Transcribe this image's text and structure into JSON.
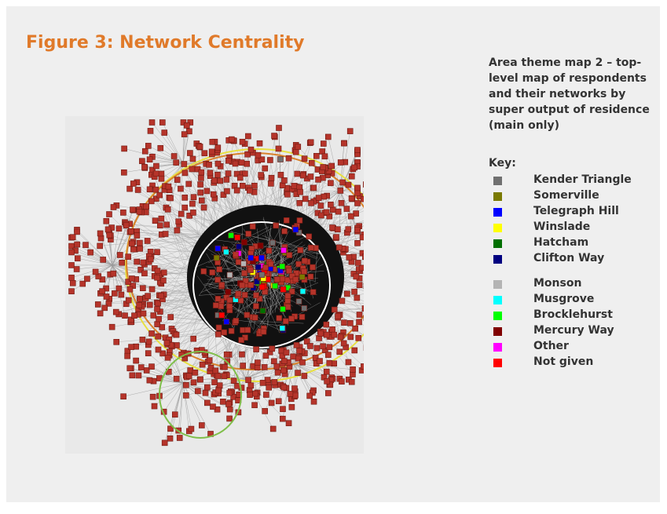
{
  "header": {
    "title": "Figure 3: Network Centrality"
  },
  "description": "Area theme map 2 – top-level map of respondents and their networks by super output of residence (main only)",
  "key": {
    "label": "Key:",
    "groups": [
      [
        {
          "label": "Kender Triangle",
          "color": "#707070"
        },
        {
          "label": "Somerville",
          "color": "#7a7a00"
        },
        {
          "label": "Telegraph Hill",
          "color": "#0000ff"
        },
        {
          "label": "Winslade",
          "color": "#ffff00"
        },
        {
          "label": "Hatcham",
          "color": "#007000"
        },
        {
          "label": "Clifton Way",
          "color": "#000080"
        }
      ],
      [
        {
          "label": "Monson",
          "color": "#b4b4b4"
        },
        {
          "label": "Musgrove",
          "color": "#00ffff"
        },
        {
          "label": "Brocklehurst",
          "color": "#00ff00"
        },
        {
          "label": "Mercury Way",
          "color": "#800000"
        },
        {
          "label": "Other",
          "color": "#ff00ff"
        },
        {
          "label": "Not given",
          "color": "#ff0000"
        }
      ]
    ]
  }
}
